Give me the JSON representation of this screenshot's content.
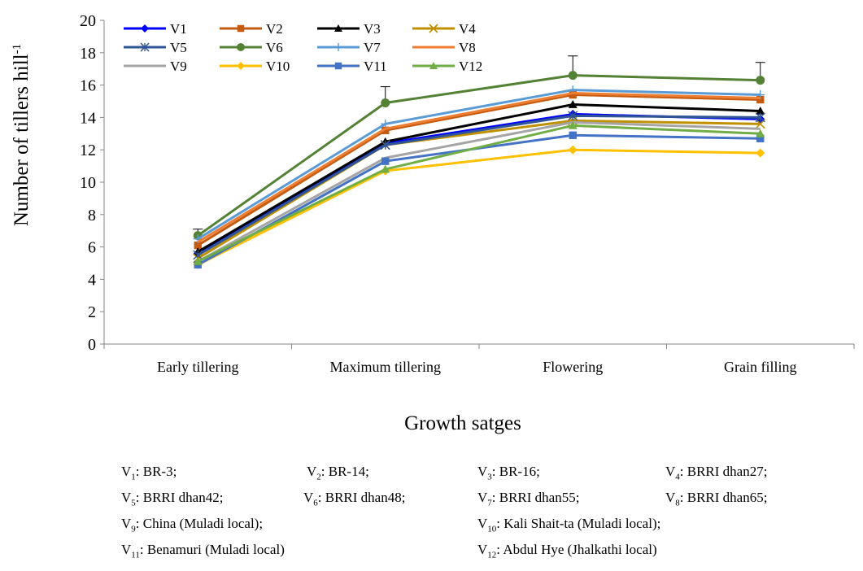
{
  "chart_data": {
    "type": "line",
    "title": "",
    "xlabel": "Growth satges",
    "ylabel": "Number of tillers hill",
    "ylabel_superscript": "-1",
    "ylim": [
      0,
      20
    ],
    "yticks": [
      0,
      2,
      4,
      6,
      8,
      10,
      12,
      14,
      16,
      18,
      20
    ],
    "categories": [
      "Early tillering",
      "Maximum tillering",
      "Flowering",
      "Grain filling"
    ],
    "legend_position": "top-left",
    "grid": false,
    "series": [
      {
        "name": "V1",
        "color": "#0000ff",
        "marker": "diamond",
        "values": [
          5.6,
          12.4,
          14.2,
          13.9
        ]
      },
      {
        "name": "V2",
        "color": "#c55a11",
        "marker": "square",
        "values": [
          6.1,
          13.2,
          15.4,
          15.1
        ]
      },
      {
        "name": "V3",
        "color": "#000000",
        "marker": "triangle",
        "values": [
          5.7,
          12.5,
          14.8,
          14.4
        ]
      },
      {
        "name": "V4",
        "color": "#bf9000",
        "marker": "x",
        "values": [
          5.3,
          12.3,
          13.8,
          13.6
        ]
      },
      {
        "name": "V5",
        "color": "#2f5597",
        "marker": "star",
        "values": [
          5.5,
          12.3,
          14.1,
          14.0
        ]
      },
      {
        "name": "V6",
        "color": "#548235",
        "marker": "circle",
        "values": [
          6.7,
          14.9,
          16.6,
          16.3
        ]
      },
      {
        "name": "V7",
        "color": "#5b9bd5",
        "marker": "plus",
        "values": [
          6.5,
          13.6,
          15.7,
          15.4
        ]
      },
      {
        "name": "V8",
        "color": "#ed7d31",
        "marker": "none",
        "values": [
          6.3,
          13.3,
          15.5,
          15.2
        ]
      },
      {
        "name": "V9",
        "color": "#a5a5a5",
        "marker": "none",
        "values": [
          5.1,
          11.5,
          13.7,
          13.3
        ]
      },
      {
        "name": "V10",
        "color": "#ffc000",
        "marker": "diamond",
        "values": [
          4.9,
          10.7,
          12.0,
          11.8
        ]
      },
      {
        "name": "V11",
        "color": "#4472c4",
        "marker": "square",
        "values": [
          4.9,
          11.3,
          12.9,
          12.7
        ]
      },
      {
        "name": "V12",
        "color": "#70ad47",
        "marker": "triangle",
        "values": [
          5.1,
          10.8,
          13.5,
          13.0
        ]
      }
    ],
    "error_bars": {
      "series": "V6",
      "values": [
        0.4,
        1.0,
        1.2,
        1.1
      ]
    }
  },
  "caption": {
    "rows": [
      [
        {
          "sym": "V",
          "sub": "1",
          "text": ": BR-3;"
        },
        {
          "sym": "V",
          "sub": "2",
          "text": ": BR-14;"
        },
        {
          "sym": "V",
          "sub": "3",
          "text": ": BR-16;"
        },
        {
          "sym": "V",
          "sub": "4",
          "text": ": BRRI dhan27;"
        }
      ],
      [
        {
          "sym": "V",
          "sub": "5",
          "text": ": BRRI dhan42;"
        },
        {
          "sym": "V",
          "sub": "6",
          "text": ": BRRI dhan48;"
        },
        {
          "sym": "V",
          "sub": "7",
          "text": ": BRRI dhan55;"
        },
        {
          "sym": "V",
          "sub": "8",
          "text": ": BRRI dhan65;"
        }
      ],
      [
        {
          "sym": "V",
          "sub": "9",
          "text": ": China (Muladi local);"
        },
        {
          "sym": "V",
          "sub": "10",
          "text": ": Kali Shait-ta (Muladi local);"
        }
      ],
      [
        {
          "sym": "V",
          "sub": "11",
          "text": ": Benamuri (Muladi local)"
        },
        {
          "sym": "V",
          "sub": "12",
          "text": ": Abdul Hye (Jhalkathi local)"
        }
      ]
    ]
  }
}
